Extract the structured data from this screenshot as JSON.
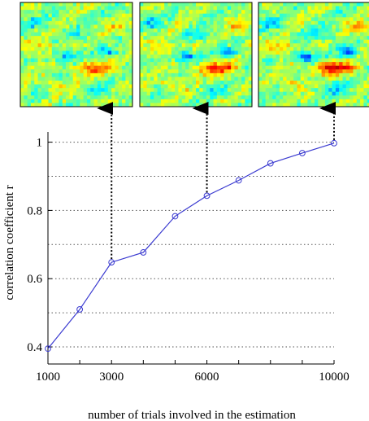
{
  "chart_data": {
    "type": "line",
    "xlabel": "number of trials involved in the estimation",
    "ylabel": "correlation coefficient r",
    "x": [
      1000,
      2000,
      3000,
      4000,
      5000,
      6000,
      7000,
      8000,
      9000,
      10000
    ],
    "y": [
      0.395,
      0.51,
      0.648,
      0.677,
      0.783,
      0.843,
      0.888,
      0.938,
      0.968,
      0.997
    ],
    "xlim": [
      1000,
      10000
    ],
    "ylim": [
      0.35,
      1.03
    ],
    "xticks": [
      1000,
      3000,
      6000,
      10000
    ],
    "xtick_labels": [
      "1000",
      "3000",
      "6000",
      "10000"
    ],
    "yticks": [
      0.4,
      0.6,
      0.8,
      1.0
    ],
    "ytick_labels": [
      "0.4",
      "0.6",
      "0.8",
      "1"
    ],
    "ygrid_values": [
      0.4,
      0.5,
      0.6,
      0.7,
      0.8,
      0.9,
      1.0
    ],
    "grid": "horizontal dotted",
    "line_color": "#3a3ad0",
    "marker": "open circle",
    "inset_maps_at_x": [
      3000,
      6000,
      10000
    ],
    "inset_map_colormap": "jet"
  }
}
